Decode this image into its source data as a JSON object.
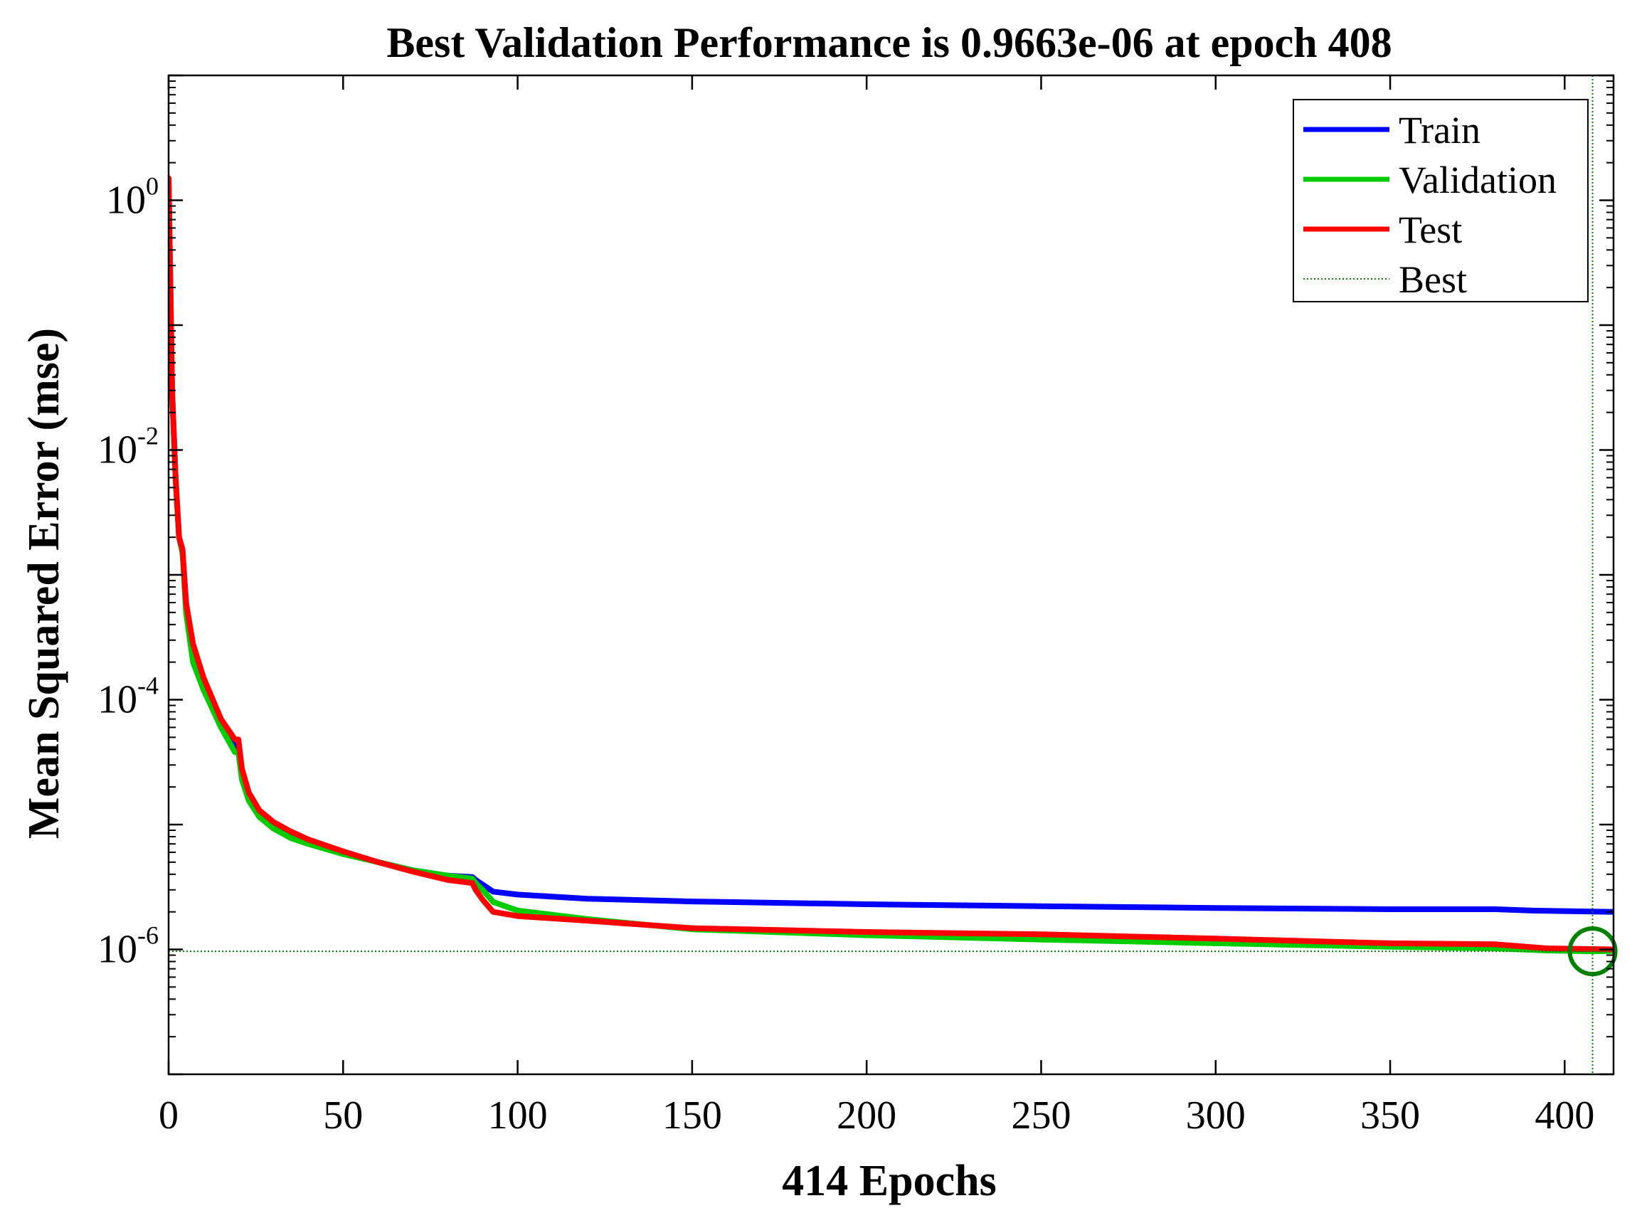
{
  "chart_data": {
    "type": "line",
    "title": "Best Validation Performance is 0.9663e-06 at epoch 408",
    "xlabel": "414 Epochs",
    "ylabel": "Mean Squared Error  (mse)",
    "x_scale": "linear",
    "y_scale": "log",
    "xlim": [
      0,
      414
    ],
    "ylim_log10": [
      -7,
      1
    ],
    "x_ticks": [
      0,
      50,
      100,
      150,
      200,
      250,
      300,
      350,
      400
    ],
    "y_ticks": [
      {
        "base": "10",
        "exp": "0",
        "log10": 0
      },
      {
        "base": "10",
        "exp": "-2",
        "log10": -2
      },
      {
        "base": "10",
        "exp": "-4",
        "log10": -4
      },
      {
        "base": "10",
        "exp": "-6",
        "log10": -6
      }
    ],
    "grid": false,
    "legend_position": "top-right",
    "best": {
      "epoch": 408,
      "value": 9.663e-07,
      "color": "#008000"
    },
    "series": [
      {
        "name": "Train",
        "color": "#0000ff",
        "points": [
          [
            0,
            1.5
          ],
          [
            1,
            0.03
          ],
          [
            2,
            0.006
          ],
          [
            3,
            0.002
          ],
          [
            4,
            0.0015
          ],
          [
            5,
            0.0006
          ],
          [
            7,
            0.00025
          ],
          [
            10,
            0.00014
          ],
          [
            15,
            6.5e-05
          ],
          [
            19,
            4.2e-05
          ],
          [
            20,
            4.2e-05
          ],
          [
            21,
            2.6e-05
          ],
          [
            23,
            1.7e-05
          ],
          [
            26,
            1.25e-05
          ],
          [
            30,
            1e-05
          ],
          [
            35,
            8.5e-06
          ],
          [
            40,
            7.4e-06
          ],
          [
            50,
            6e-06
          ],
          [
            60,
            5e-06
          ],
          [
            70,
            4.3e-06
          ],
          [
            80,
            3.9e-06
          ],
          [
            87,
            3.8e-06
          ],
          [
            88,
            3.6e-06
          ],
          [
            90,
            3.3e-06
          ],
          [
            93,
            2.9e-06
          ],
          [
            100,
            2.75e-06
          ],
          [
            120,
            2.55e-06
          ],
          [
            150,
            2.42e-06
          ],
          [
            200,
            2.3e-06
          ],
          [
            250,
            2.22e-06
          ],
          [
            300,
            2.15e-06
          ],
          [
            350,
            2.1e-06
          ],
          [
            380,
            2.1e-06
          ],
          [
            390,
            2.05e-06
          ],
          [
            414,
            2e-06
          ]
        ]
      },
      {
        "name": "Validation",
        "color": "#00cc00",
        "points": [
          [
            0,
            1.5
          ],
          [
            1,
            0.03
          ],
          [
            2,
            0.006
          ],
          [
            3,
            0.002
          ],
          [
            4,
            0.0015
          ],
          [
            5,
            0.0005
          ],
          [
            7,
            0.0002
          ],
          [
            10,
            0.00012
          ],
          [
            15,
            6e-05
          ],
          [
            19,
            3.8e-05
          ],
          [
            20,
            3.8e-05
          ],
          [
            21,
            2.3e-05
          ],
          [
            23,
            1.55e-05
          ],
          [
            26,
            1.15e-05
          ],
          [
            30,
            9.3e-06
          ],
          [
            35,
            7.8e-06
          ],
          [
            40,
            7e-06
          ],
          [
            50,
            5.8e-06
          ],
          [
            60,
            5e-06
          ],
          [
            70,
            4.3e-06
          ],
          [
            80,
            3.9e-06
          ],
          [
            87,
            3.7e-06
          ],
          [
            88,
            3.4e-06
          ],
          [
            90,
            3e-06
          ],
          [
            93,
            2.4e-06
          ],
          [
            100,
            2.05e-06
          ],
          [
            120,
            1.75e-06
          ],
          [
            150,
            1.45e-06
          ],
          [
            200,
            1.3e-06
          ],
          [
            250,
            1.2e-06
          ],
          [
            300,
            1.12e-06
          ],
          [
            350,
            1.05e-06
          ],
          [
            380,
            1.02e-06
          ],
          [
            395,
            9.8e-07
          ],
          [
            408,
            9.663e-07
          ],
          [
            414,
            9.7e-07
          ]
        ]
      },
      {
        "name": "Test",
        "color": "#ff0000",
        "points": [
          [
            0,
            1.5
          ],
          [
            1,
            0.03
          ],
          [
            2,
            0.006
          ],
          [
            3,
            0.002
          ],
          [
            4,
            0.0016
          ],
          [
            5,
            0.0006
          ],
          [
            7,
            0.00028
          ],
          [
            10,
            0.00015
          ],
          [
            15,
            7e-05
          ],
          [
            19,
            4.8e-05
          ],
          [
            20,
            4.8e-05
          ],
          [
            21,
            2.8e-05
          ],
          [
            23,
            1.8e-05
          ],
          [
            26,
            1.3e-05
          ],
          [
            30,
            1.05e-05
          ],
          [
            35,
            8.8e-06
          ],
          [
            40,
            7.6e-06
          ],
          [
            50,
            6.1e-06
          ],
          [
            60,
            5e-06
          ],
          [
            70,
            4.2e-06
          ],
          [
            80,
            3.6e-06
          ],
          [
            87,
            3.4e-06
          ],
          [
            88,
            3e-06
          ],
          [
            90,
            2.5e-06
          ],
          [
            93,
            2e-06
          ],
          [
            100,
            1.85e-06
          ],
          [
            120,
            1.7e-06
          ],
          [
            150,
            1.48e-06
          ],
          [
            200,
            1.38e-06
          ],
          [
            250,
            1.32e-06
          ],
          [
            300,
            1.22e-06
          ],
          [
            350,
            1.12e-06
          ],
          [
            380,
            1.1e-06
          ],
          [
            395,
            1.02e-06
          ],
          [
            414,
            1e-06
          ]
        ]
      },
      {
        "name": "Best",
        "color": "#008000",
        "style": "dotted"
      }
    ]
  }
}
